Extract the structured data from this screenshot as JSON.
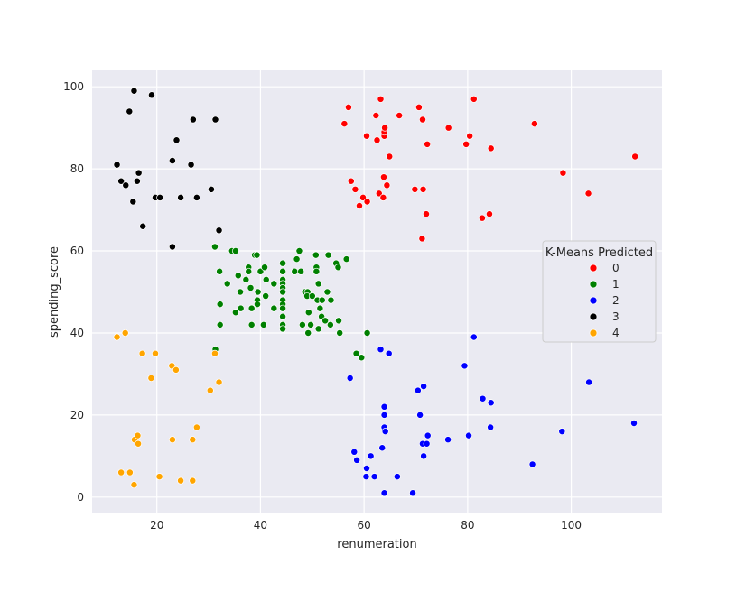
{
  "chart_data": {
    "type": "scatter",
    "title": "",
    "xlabel": "renumeration",
    "ylabel": "spending_score",
    "xlim": [
      7.5,
      117.5
    ],
    "ylim": [
      -4,
      104
    ],
    "xticks": [
      20,
      40,
      60,
      80,
      100
    ],
    "yticks": [
      0,
      20,
      40,
      60,
      80,
      100
    ],
    "grid": true,
    "legend": {
      "title": "K-Means Predicted",
      "placement": "center-right"
    },
    "series": [
      {
        "name": "0",
        "color": "#ff0000",
        "points": [
          [
            57.0,
            95
          ],
          [
            60.5,
            88
          ],
          [
            62.3,
            93
          ],
          [
            62.5,
            87
          ],
          [
            63.2,
            97
          ],
          [
            63.9,
            88
          ],
          [
            63.9,
            89
          ],
          [
            64.0,
            90
          ],
          [
            66.8,
            93
          ],
          [
            70.6,
            95
          ],
          [
            71.3,
            92
          ],
          [
            72.2,
            86
          ],
          [
            76.3,
            90
          ],
          [
            79.7,
            86
          ],
          [
            80.4,
            88
          ],
          [
            81.2,
            97
          ],
          [
            84.5,
            85
          ],
          [
            92.9,
            91
          ],
          [
            98.4,
            79
          ],
          [
            103.3,
            74
          ],
          [
            112.3,
            83
          ],
          [
            56.2,
            91
          ],
          [
            57.5,
            77
          ],
          [
            58.3,
            75
          ],
          [
            59.1,
            71
          ],
          [
            59.8,
            73
          ],
          [
            60.6,
            72
          ],
          [
            62.9,
            74
          ],
          [
            63.7,
            73
          ],
          [
            63.8,
            78
          ],
          [
            64.4,
            76
          ],
          [
            64.9,
            83
          ],
          [
            69.8,
            75
          ],
          [
            71.4,
            75
          ],
          [
            71.2,
            63
          ],
          [
            72.0,
            69
          ],
          [
            82.8,
            68
          ],
          [
            84.2,
            69
          ]
        ]
      },
      {
        "name": "1",
        "color": "#008000",
        "points": [
          [
            31.2,
            61
          ],
          [
            31.3,
            36
          ],
          [
            32.1,
            55
          ],
          [
            32.2,
            42
          ],
          [
            32.2,
            47
          ],
          [
            33.6,
            52
          ],
          [
            34.5,
            60
          ],
          [
            35.2,
            60
          ],
          [
            35.2,
            45
          ],
          [
            35.7,
            54
          ],
          [
            36.1,
            50
          ],
          [
            36.2,
            46
          ],
          [
            37.2,
            53
          ],
          [
            37.7,
            56
          ],
          [
            37.7,
            55
          ],
          [
            38.1,
            51
          ],
          [
            38.3,
            42
          ],
          [
            38.3,
            46
          ],
          [
            38.9,
            59
          ],
          [
            39.3,
            59
          ],
          [
            39.4,
            48
          ],
          [
            39.4,
            47
          ],
          [
            39.5,
            50
          ],
          [
            40.0,
            55
          ],
          [
            40.6,
            42
          ],
          [
            40.8,
            56
          ],
          [
            41.0,
            49
          ],
          [
            41.1,
            53
          ],
          [
            42.6,
            52
          ],
          [
            42.6,
            46
          ],
          [
            44.3,
            57
          ],
          [
            44.3,
            55
          ],
          [
            44.3,
            53
          ],
          [
            44.3,
            52
          ],
          [
            44.3,
            51
          ],
          [
            44.3,
            50
          ],
          [
            44.3,
            48
          ],
          [
            44.3,
            47
          ],
          [
            44.3,
            46
          ],
          [
            44.3,
            44
          ],
          [
            44.3,
            42
          ],
          [
            44.3,
            41
          ],
          [
            46.6,
            55
          ],
          [
            47.0,
            58
          ],
          [
            47.5,
            60
          ],
          [
            47.8,
            55
          ],
          [
            48.1,
            42
          ],
          [
            48.6,
            50
          ],
          [
            49.1,
            50
          ],
          [
            49.0,
            49
          ],
          [
            49.2,
            40
          ],
          [
            49.7,
            42
          ],
          [
            49.3,
            45
          ],
          [
            50.0,
            49
          ],
          [
            50.7,
            59
          ],
          [
            50.8,
            56
          ],
          [
            50.8,
            55
          ],
          [
            51.0,
            48
          ],
          [
            51.2,
            52
          ],
          [
            51.5,
            46
          ],
          [
            51.2,
            41
          ],
          [
            51.8,
            44
          ],
          [
            51.9,
            48
          ],
          [
            52.5,
            43
          ],
          [
            52.9,
            50
          ],
          [
            53.1,
            59
          ],
          [
            53.5,
            42
          ],
          [
            53.6,
            48
          ],
          [
            54.6,
            57
          ],
          [
            55.0,
            56
          ],
          [
            55.1,
            43
          ],
          [
            55.3,
            40
          ],
          [
            56.6,
            58
          ],
          [
            60.6,
            40
          ],
          [
            58.5,
            35
          ],
          [
            59.5,
            34
          ]
        ]
      },
      {
        "name": "2",
        "color": "#0000ff",
        "points": [
          [
            57.3,
            29
          ],
          [
            58.1,
            11
          ],
          [
            58.6,
            9
          ],
          [
            60.4,
            5
          ],
          [
            60.5,
            7
          ],
          [
            61.3,
            10
          ],
          [
            62.0,
            5
          ],
          [
            63.2,
            36
          ],
          [
            63.5,
            12
          ],
          [
            63.9,
            17
          ],
          [
            63.9,
            22
          ],
          [
            63.9,
            20
          ],
          [
            64.1,
            16
          ],
          [
            64.8,
            35
          ],
          [
            66.4,
            5
          ],
          [
            69.4,
            1
          ],
          [
            70.4,
            26
          ],
          [
            70.8,
            20
          ],
          [
            71.3,
            13
          ],
          [
            71.5,
            27
          ],
          [
            71.5,
            10
          ],
          [
            72.1,
            13
          ],
          [
            72.3,
            15
          ],
          [
            76.2,
            14
          ],
          [
            79.4,
            32
          ],
          [
            80.2,
            15
          ],
          [
            81.2,
            39
          ],
          [
            82.9,
            24
          ],
          [
            84.5,
            23
          ],
          [
            84.4,
            17
          ],
          [
            92.5,
            8
          ],
          [
            98.2,
            16
          ],
          [
            103.4,
            28
          ],
          [
            112.1,
            18
          ],
          [
            63.9,
            1
          ]
        ]
      },
      {
        "name": "3",
        "color": "#000000",
        "points": [
          [
            12.3,
            81
          ],
          [
            13.1,
            77
          ],
          [
            14.0,
            76
          ],
          [
            14.7,
            94
          ],
          [
            15.4,
            72
          ],
          [
            15.6,
            99
          ],
          [
            16.2,
            77
          ],
          [
            16.5,
            79
          ],
          [
            17.3,
            66
          ],
          [
            19.0,
            98
          ],
          [
            19.7,
            73
          ],
          [
            20.6,
            73
          ],
          [
            23.0,
            82
          ],
          [
            23.0,
            61
          ],
          [
            23.8,
            87
          ],
          [
            24.6,
            73
          ],
          [
            26.6,
            81
          ],
          [
            27.0,
            92
          ],
          [
            27.7,
            73
          ],
          [
            30.5,
            75
          ],
          [
            31.3,
            92
          ],
          [
            32.0,
            65
          ]
        ]
      },
      {
        "name": "4",
        "color": "#ffa500",
        "points": [
          [
            12.3,
            39
          ],
          [
            13.1,
            6
          ],
          [
            13.9,
            40
          ],
          [
            14.8,
            6
          ],
          [
            15.6,
            3
          ],
          [
            15.7,
            14
          ],
          [
            16.3,
            15
          ],
          [
            16.4,
            13
          ],
          [
            17.2,
            35
          ],
          [
            18.9,
            29
          ],
          [
            19.7,
            35
          ],
          [
            20.5,
            5
          ],
          [
            22.9,
            32
          ],
          [
            23.0,
            14
          ],
          [
            23.7,
            31
          ],
          [
            24.6,
            4
          ],
          [
            26.9,
            14
          ],
          [
            26.9,
            4
          ],
          [
            27.7,
            17
          ],
          [
            30.3,
            26
          ],
          [
            31.2,
            35
          ],
          [
            32.0,
            28
          ]
        ]
      }
    ]
  }
}
